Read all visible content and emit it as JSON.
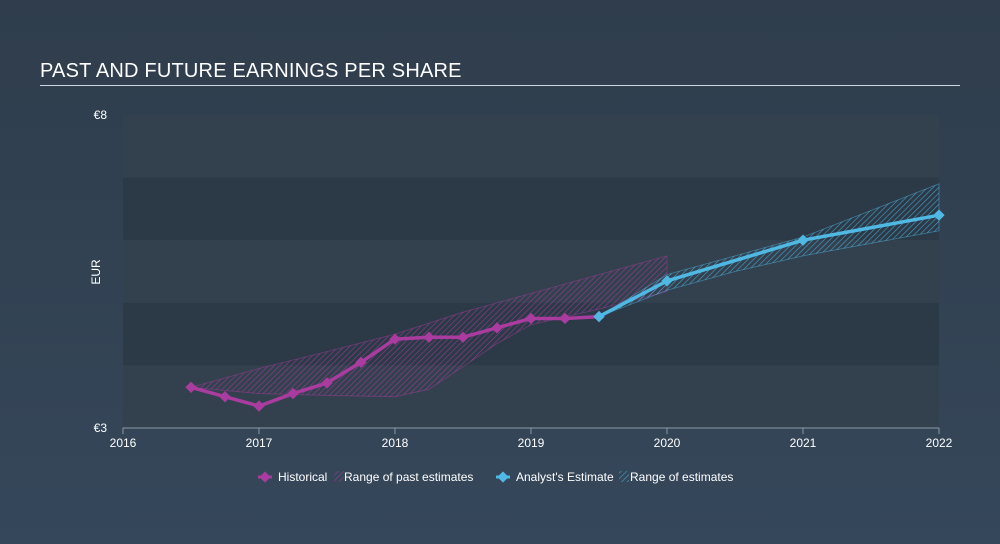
{
  "chart_data": {
    "type": "line",
    "title": "PAST AND FUTURE EARNINGS PER SHARE",
    "ylabel": "EUR",
    "xlim": [
      2016,
      2022
    ],
    "ylim": [
      3,
      8
    ],
    "y_tick_labels": [
      {
        "value": 8,
        "label": "€8"
      },
      {
        "value": 3,
        "label": "€3"
      }
    ],
    "x_ticks": [
      2016,
      2017,
      2018,
      2019,
      2020,
      2021,
      2022
    ],
    "series": [
      {
        "name": "Historical",
        "color": "#a93c9e",
        "points": [
          [
            2016.5,
            3.65
          ],
          [
            2016.75,
            3.5
          ],
          [
            2017.0,
            3.35
          ],
          [
            2017.25,
            3.55
          ],
          [
            2017.5,
            3.72
          ],
          [
            2017.75,
            4.05
          ],
          [
            2018.0,
            4.42
          ],
          [
            2018.25,
            4.45
          ],
          [
            2018.5,
            4.45
          ],
          [
            2018.75,
            4.6
          ],
          [
            2019.0,
            4.75
          ],
          [
            2019.25,
            4.75
          ],
          [
            2019.5,
            4.78
          ]
        ]
      },
      {
        "name": "Analyst's Estimate",
        "color": "#4fb8e3",
        "points": [
          [
            2019.5,
            4.78
          ],
          [
            2020.0,
            5.35
          ],
          [
            2021.0,
            6.0
          ],
          [
            2022.0,
            6.4
          ]
        ]
      }
    ],
    "ranges": [
      {
        "name": "Range of past estimates",
        "color": "#a93c9e",
        "upper": [
          [
            2016.5,
            3.65
          ],
          [
            2017.0,
            3.95
          ],
          [
            2017.5,
            4.22
          ],
          [
            2018.0,
            4.5
          ],
          [
            2018.5,
            4.85
          ],
          [
            2019.0,
            5.15
          ],
          [
            2019.5,
            5.45
          ],
          [
            2020.0,
            5.75
          ]
        ],
        "lower": [
          [
            2016.5,
            3.65
          ],
          [
            2017.0,
            3.55
          ],
          [
            2017.5,
            3.52
          ],
          [
            2018.0,
            3.5
          ],
          [
            2018.25,
            3.62
          ],
          [
            2018.5,
            3.98
          ],
          [
            2018.75,
            4.35
          ],
          [
            2019.0,
            4.65
          ],
          [
            2019.5,
            4.9
          ],
          [
            2020.0,
            5.18
          ]
        ]
      },
      {
        "name": "Range of estimates",
        "color": "#4fb8e3",
        "upper": [
          [
            2019.5,
            4.78
          ],
          [
            2020.0,
            5.45
          ],
          [
            2020.5,
            5.75
          ],
          [
            2021.0,
            6.05
          ],
          [
            2022.0,
            6.9
          ]
        ],
        "lower": [
          [
            2019.5,
            4.78
          ],
          [
            2020.0,
            5.2
          ],
          [
            2020.5,
            5.5
          ],
          [
            2021.0,
            5.75
          ],
          [
            2022.0,
            6.15
          ]
        ]
      }
    ]
  },
  "legend": {
    "historical": "Historical",
    "past_range": "Range of past estimates",
    "analyst": "Analyst's Estimate",
    "future_range": "Range of estimates"
  },
  "colors": {
    "historical": "#a93c9e",
    "estimate": "#4fb8e3"
  }
}
